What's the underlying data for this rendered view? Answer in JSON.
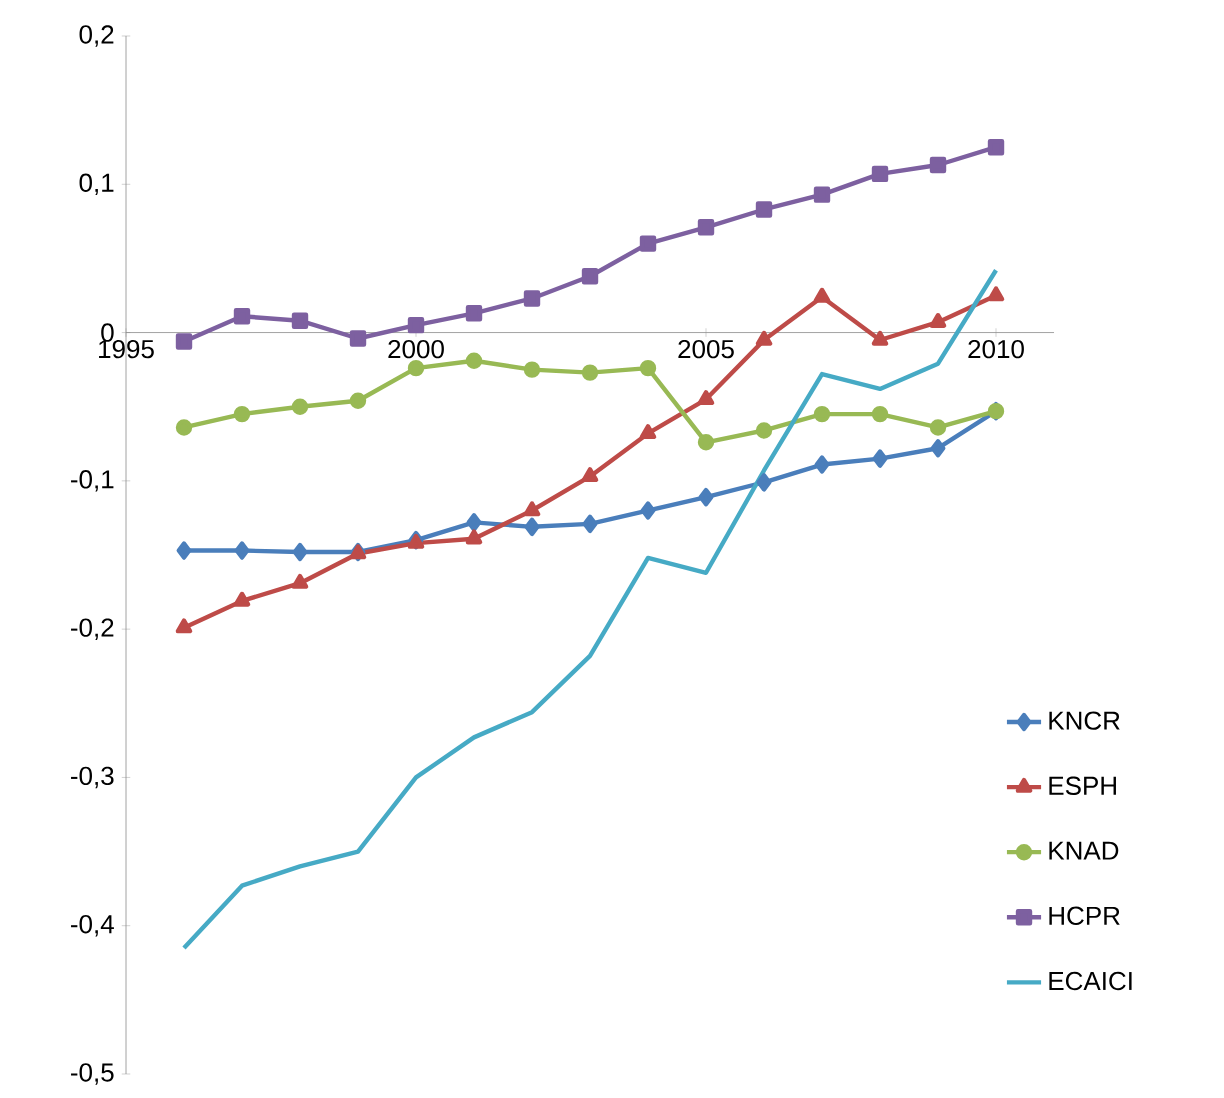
{
  "chart_data": {
    "type": "line",
    "x": [
      1996,
      1997,
      1998,
      1999,
      2000,
      2001,
      2002,
      2003,
      2004,
      2005,
      2006,
      2007,
      2008,
      2009,
      2010
    ],
    "xlim": [
      1995,
      2011
    ],
    "xticks": [
      1995,
      2000,
      2005,
      2010
    ],
    "ylim": [
      -0.5,
      0.2
    ],
    "yticks": [
      {
        "value": -0.5,
        "label": "-0,5"
      },
      {
        "value": -0.4,
        "label": "-0,4"
      },
      {
        "value": -0.3,
        "label": "-0,3"
      },
      {
        "value": -0.2,
        "label": "-0,2"
      },
      {
        "value": -0.1,
        "label": "-0,1"
      },
      0,
      {
        "value": 0.1,
        "label": "0,1"
      },
      {
        "value": 0.2,
        "label": "0,2"
      }
    ],
    "legend": "right",
    "grid": false,
    "series": [
      {
        "name": "KNCR",
        "color": "#4a7ebb",
        "marker": "diamond",
        "values": [
          -0.147,
          -0.147,
          -0.148,
          -0.148,
          -0.14,
          -0.128,
          -0.131,
          -0.129,
          -0.12,
          -0.111,
          -0.101,
          -0.089,
          -0.085,
          -0.078,
          -0.053
        ]
      },
      {
        "name": "ESPH",
        "color": "#be4b48",
        "marker": "triangle",
        "values": [
          -0.199,
          -0.181,
          -0.169,
          -0.149,
          -0.142,
          -0.139,
          -0.12,
          -0.097,
          -0.068,
          -0.045,
          -0.005,
          0.024,
          -0.005,
          0.007,
          0.025
        ]
      },
      {
        "name": "KNAD",
        "color": "#98b954",
        "marker": "circle",
        "values": [
          -0.064,
          -0.055,
          -0.05,
          -0.046,
          -0.024,
          -0.019,
          -0.025,
          -0.027,
          -0.024,
          -0.074,
          -0.066,
          -0.055,
          -0.055,
          -0.064,
          -0.053
        ]
      },
      {
        "name": "HCPR",
        "color": "#7d60a0",
        "marker": "square",
        "values": [
          -0.006,
          0.011,
          0.008,
          -0.004,
          0.005,
          0.013,
          0.023,
          0.038,
          0.06,
          0.071,
          0.083,
          0.093,
          0.107,
          0.113,
          0.125
        ]
      },
      {
        "name": "ECAICI",
        "color": "#46aac5",
        "marker": "none",
        "values": [
          -0.415,
          -0.373,
          -0.36,
          -0.35,
          -0.3,
          -0.273,
          -0.256,
          -0.218,
          -0.152,
          -0.162,
          -0.093,
          -0.028,
          -0.038,
          -0.021,
          0.042
        ]
      }
    ]
  }
}
